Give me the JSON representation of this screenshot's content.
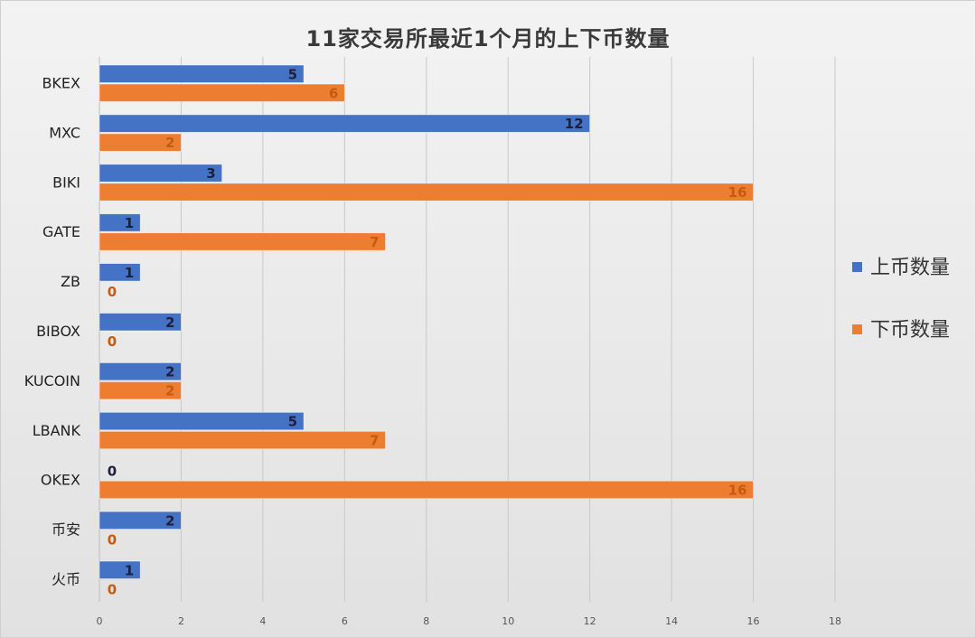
{
  "chart_data": {
    "type": "bar",
    "orientation": "horizontal",
    "title": "11家交易所最近1个月的上下币数量",
    "categories": [
      "BKEX",
      "MXC",
      "BIKI",
      "GATE",
      "ZB",
      "BIBOX",
      "KUCOIN",
      "LBANK",
      "OKEX",
      "币安",
      "火币"
    ],
    "series": [
      {
        "name": "上币数量",
        "values": [
          5,
          12,
          3,
          1,
          1,
          2,
          2,
          5,
          0,
          2,
          1
        ],
        "color": "#4472c4",
        "label_color": "#1f1f3a"
      },
      {
        "name": "下币数量",
        "values": [
          6,
          2,
          16,
          7,
          0,
          0,
          2,
          7,
          16,
          0,
          0
        ],
        "color": "#ed7d31",
        "label_color": "#c55a11"
      }
    ],
    "xlim": [
      0,
      18
    ],
    "ticks": [
      "0",
      "2",
      "4",
      "6",
      "8",
      "10",
      "12",
      "14",
      "16",
      "18"
    ],
    "grid": true,
    "legend_position": "right"
  }
}
